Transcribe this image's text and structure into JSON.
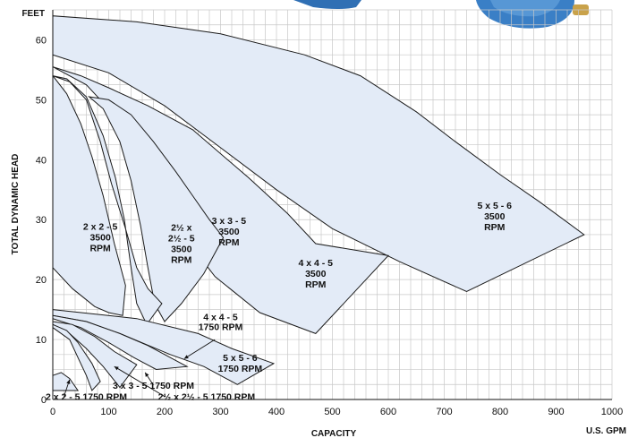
{
  "chart_data": {
    "type": "area",
    "title": "",
    "xlabel": "CAPACITY",
    "ylabel": "TOTAL DYNAMIC HEAD",
    "x_unit": "U.S. GPM",
    "y_unit": "FEET",
    "xlim": [
      0,
      1000
    ],
    "ylim": [
      0,
      65
    ],
    "x_ticks": [
      0,
      100,
      200,
      300,
      400,
      500,
      600,
      700,
      800,
      900,
      1000
    ],
    "y_ticks": [
      0,
      10,
      20,
      30,
      40,
      50,
      60
    ],
    "grid": true,
    "regions": [
      {
        "label": [
          "5 x 5 - 6",
          "3500",
          "RPM"
        ],
        "label_at": [
          790,
          30
        ],
        "points": [
          [
            0,
            58
          ],
          [
            0,
            64
          ],
          [
            150,
            63
          ],
          [
            300,
            61
          ],
          [
            450,
            57.5
          ],
          [
            550,
            54
          ],
          [
            650,
            48
          ],
          [
            720,
            43
          ],
          [
            800,
            37.5
          ],
          [
            870,
            33
          ],
          [
            950,
            27.5
          ],
          [
            740,
            18
          ],
          [
            620,
            23
          ],
          [
            500,
            28.5
          ],
          [
            400,
            35
          ],
          [
            300,
            42
          ],
          [
            200,
            49
          ],
          [
            100,
            54.5
          ],
          [
            0,
            57.5
          ]
        ]
      },
      {
        "label": [
          "4 x 4 - 5",
          "3500",
          "RPM"
        ],
        "label_at": [
          470,
          20.5
        ],
        "points": [
          [
            0,
            55.5
          ],
          [
            50,
            54
          ],
          [
            100,
            52
          ],
          [
            170,
            49
          ],
          [
            250,
            45
          ],
          [
            350,
            37
          ],
          [
            420,
            31
          ],
          [
            470,
            26
          ],
          [
            600,
            24
          ],
          [
            470,
            11
          ],
          [
            370,
            14.5
          ],
          [
            290,
            20.5
          ],
          [
            220,
            29
          ],
          [
            180,
            36
          ],
          [
            140,
            43
          ],
          [
            100,
            48.5
          ],
          [
            60,
            52.5
          ],
          [
            0,
            55.5
          ]
        ]
      },
      {
        "label": [
          "3 x 3 - 5",
          "3500",
          "RPM"
        ],
        "label_at": [
          315,
          27.5
        ],
        "points": [
          [
            65,
            50.5
          ],
          [
            100,
            50
          ],
          [
            140,
            47.5
          ],
          [
            180,
            43
          ],
          [
            220,
            38
          ],
          [
            250,
            34
          ],
          [
            280,
            30
          ],
          [
            305,
            27
          ],
          [
            270,
            21
          ],
          [
            230,
            16
          ],
          [
            200,
            13
          ],
          [
            182,
            16
          ],
          [
            170,
            22
          ],
          [
            157,
            29
          ],
          [
            140,
            36.5
          ],
          [
            120,
            43
          ],
          [
            90,
            48.5
          ],
          [
            65,
            50.5
          ]
        ]
      },
      {
        "label": [
          "2½ x",
          "2½ - 5",
          "3500",
          "RPM"
        ],
        "label_at": [
          230,
          25.5
        ],
        "points": [
          [
            0,
            54
          ],
          [
            30,
            53
          ],
          [
            60,
            50
          ],
          [
            85,
            43
          ],
          [
            105,
            36
          ],
          [
            130,
            28.5
          ],
          [
            150,
            22
          ],
          [
            170,
            18.5
          ],
          [
            195,
            16
          ],
          [
            168,
            12.5
          ],
          [
            150,
            16
          ],
          [
            140,
            22
          ],
          [
            128,
            30
          ],
          [
            112,
            37
          ],
          [
            90,
            44
          ],
          [
            60,
            50.5
          ],
          [
            25,
            53.5
          ],
          [
            0,
            54
          ]
        ]
      },
      {
        "label": [
          "2 x 2 - 5",
          "3500",
          "RPM"
        ],
        "label_at": [
          85,
          26.5
        ],
        "points": [
          [
            0,
            54
          ],
          [
            25,
            51
          ],
          [
            50,
            46
          ],
          [
            70,
            40.5
          ],
          [
            90,
            34
          ],
          [
            110,
            26
          ],
          [
            130,
            19
          ],
          [
            125,
            14
          ],
          [
            100,
            14.5
          ],
          [
            75,
            15.5
          ],
          [
            55,
            17
          ],
          [
            35,
            18.5
          ],
          [
            0,
            22
          ],
          [
            0,
            54
          ]
        ]
      },
      {
        "label": [
          "5 x 5 - 6",
          "1750 RPM"
        ],
        "label_at": [
          335,
          5.5
        ],
        "points": [
          [
            0,
            15
          ],
          [
            150,
            13.5
          ],
          [
            260,
            11
          ],
          [
            320,
            8.5
          ],
          [
            395,
            6
          ],
          [
            330,
            2.5
          ],
          [
            270,
            5.5
          ],
          [
            210,
            7.5
          ],
          [
            120,
            11
          ],
          [
            60,
            13
          ],
          [
            0,
            14
          ]
        ]
      },
      {
        "label": [
          "4 x 4 - 5",
          "1750 RPM"
        ],
        "label_at": [
          0,
          0
        ],
        "points": [
          [
            0,
            14
          ],
          [
            60,
            13
          ],
          [
            120,
            11
          ],
          [
            170,
            9
          ],
          [
            210,
            7
          ],
          [
            240,
            5.5
          ],
          [
            185,
            5
          ],
          [
            145,
            7
          ],
          [
            100,
            9.5
          ],
          [
            50,
            12
          ],
          [
            0,
            13.5
          ]
        ]
      },
      {
        "label": [
          "3 x 3 - 5 1750 RPM"
        ],
        "label_at": [
          0,
          0
        ],
        "points": [
          [
            0,
            13
          ],
          [
            35,
            12.5
          ],
          [
            75,
            10.5
          ],
          [
            110,
            8
          ],
          [
            150,
            5.8
          ],
          [
            120,
            2
          ],
          [
            90,
            5.5
          ],
          [
            60,
            8.5
          ],
          [
            30,
            11
          ],
          [
            0,
            12.5
          ]
        ]
      },
      {
        "label": [
          "2½ x 2½ - 5 1750 RPM"
        ],
        "label_at": [
          0,
          0
        ],
        "points": [
          [
            0,
            12.5
          ],
          [
            25,
            11.5
          ],
          [
            45,
            9.5
          ],
          [
            70,
            6
          ],
          [
            85,
            3
          ],
          [
            70,
            1.5
          ],
          [
            60,
            4
          ],
          [
            45,
            7
          ],
          [
            30,
            10
          ],
          [
            0,
            12
          ]
        ]
      },
      {
        "label": [
          "2 x 2 - 5 1750 RPM"
        ],
        "label_at": [
          0,
          0
        ],
        "points": [
          [
            0,
            4
          ],
          [
            15,
            4.5
          ],
          [
            30,
            3.5
          ],
          [
            45,
            1.5
          ],
          [
            0,
            1.5
          ]
        ]
      }
    ],
    "annotations": [
      {
        "text": "4 x 4 - 5",
        "at": [
          300,
          13.8
        ],
        "arrow_from": [
          290,
          10
        ],
        "arrow_to": [
          235,
          6.8
        ]
      },
      {
        "text": "1750 RPM",
        "at": [
          300,
          12.2
        ],
        "arrow_from": null,
        "arrow_to": null
      },
      {
        "text": "3 x 3 - 5 1750 RPM",
        "at": [
          180,
          2.4
        ],
        "arrow_from": [
          180,
          2.4
        ],
        "arrow_to": [
          165,
          4.5
        ]
      },
      {
        "text": "2½ x 2½ - 5 1750 RPM",
        "at": [
          275,
          0.5
        ],
        "arrow_from": [
          200,
          0.5
        ],
        "arrow_to": [
          110,
          5.5
        ]
      },
      {
        "text": "2 x 2 - 5 1750 RPM",
        "at": [
          60,
          0.5
        ],
        "arrow_from": [
          20,
          0.5
        ],
        "arrow_to": [
          30,
          3.3
        ]
      }
    ]
  }
}
